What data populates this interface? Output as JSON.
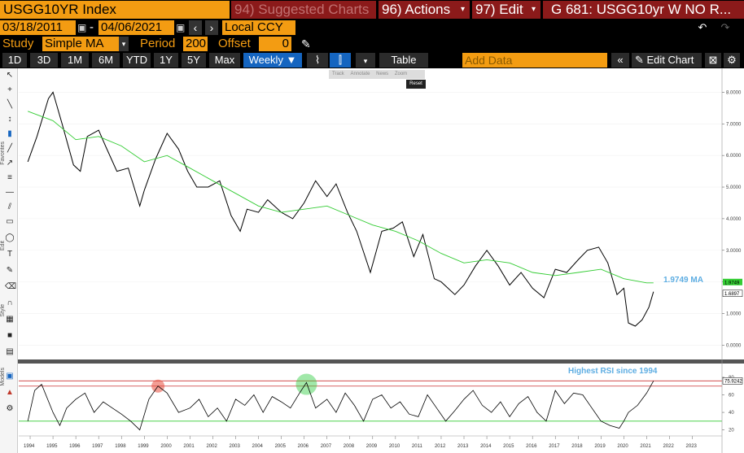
{
  "header": {
    "ticker": "USGG10YR Index",
    "suggested": "94) Suggested Charts",
    "actions": "96) Actions",
    "edit": "97) Edit",
    "chart_title": "G 681: USGG10yr W NO R...",
    "caret": "▾"
  },
  "range": {
    "start": "03/18/2011",
    "end": "04/06/2021",
    "dash": "-",
    "currency": "Local CCY",
    "prev": "‹",
    "next": "›"
  },
  "study": {
    "label": "Study",
    "value": "Simple MA",
    "period_label": "Period",
    "period_value": "200",
    "offset_label": "Offset",
    "offset_value": "0"
  },
  "toolbar": {
    "periods": [
      "1D",
      "3D",
      "1M",
      "6M",
      "YTD",
      "1Y",
      "5Y",
      "Max"
    ],
    "frequency": "Weekly ▼",
    "table": "Table",
    "add_data_placeholder": "Add Data",
    "edit_chart": "Edit Chart"
  },
  "chart_tools": {
    "items": [
      "Track",
      "Annotate",
      "News",
      "Zoom"
    ],
    "reset": "Reset"
  },
  "side_labels": [
    "Favorites",
    "Edit",
    "Style",
    "Models"
  ],
  "chart_data": {
    "type": "line",
    "upper": {
      "y_ticks": [
        "8.0000",
        "7.0000",
        "6.0000",
        "5.0000",
        "4.0000",
        "3.0000",
        "2.0000",
        "1.0000",
        "0.0000"
      ],
      "ylim": [
        -0.3,
        8.5
      ],
      "series": [
        {
          "name": "",
          "color": "#000000",
          "x": [
            1993.9,
            1994.3,
            1994.8,
            1995.0,
            1995.4,
            1995.9,
            1996.2,
            1996.5,
            1997.0,
            1997.3,
            1997.8,
            1998.3,
            1998.8,
            1999.0,
            1999.5,
            2000.0,
            2000.5,
            2000.9,
            2001.3,
            2001.8,
            2002.3,
            2002.8,
            2003.2,
            2003.5,
            2004.0,
            2004.4,
            2005.0,
            2005.5,
            2006.0,
            2006.5,
            2007.0,
            2007.4,
            2007.9,
            2008.3,
            2008.9,
            2009.4,
            2009.9,
            2010.3,
            2010.8,
            2011.2,
            2011.7,
            2012.0,
            2012.6,
            2013.0,
            2013.5,
            2014.0,
            2014.5,
            2015.0,
            2015.5,
            2016.0,
            2016.5,
            2017.0,
            2017.5,
            2018.0,
            2018.4,
            2018.9,
            2019.3,
            2019.7,
            2020.0,
            2020.2,
            2020.5,
            2020.8,
            2021.1,
            2021.3
          ],
          "y": [
            5.8,
            6.6,
            7.8,
            8.0,
            7.0,
            5.7,
            5.5,
            6.6,
            6.8,
            6.3,
            5.5,
            5.6,
            4.4,
            4.9,
            5.9,
            6.7,
            6.2,
            5.5,
            5.0,
            5.0,
            5.2,
            4.1,
            3.6,
            4.3,
            4.2,
            4.6,
            4.2,
            4.0,
            4.5,
            5.2,
            4.7,
            5.1,
            4.2,
            3.6,
            2.3,
            3.6,
            3.7,
            3.9,
            2.8,
            3.5,
            2.1,
            2.0,
            1.6,
            1.9,
            2.5,
            3.0,
            2.5,
            1.9,
            2.3,
            1.8,
            1.5,
            2.4,
            2.3,
            2.7,
            3.0,
            3.1,
            2.6,
            1.6,
            1.8,
            0.7,
            0.6,
            0.8,
            1.2,
            1.69
          ]
        },
        {
          "name": "MA",
          "color": "#33cc33",
          "x": [
            1993.9,
            1995.0,
            1996.0,
            1997.0,
            1998.0,
            1999.0,
            2000.0,
            2001.0,
            2002.0,
            2003.0,
            2004.0,
            2005.0,
            2006.0,
            2007.0,
            2008.0,
            2009.0,
            2010.0,
            2011.0,
            2012.0,
            2013.0,
            2014.0,
            2015.0,
            2016.0,
            2017.0,
            2018.0,
            2019.0,
            2020.0,
            2021.0,
            2021.3
          ],
          "y": [
            7.4,
            7.1,
            6.5,
            6.6,
            6.3,
            5.8,
            6.0,
            5.6,
            5.2,
            4.8,
            4.4,
            4.2,
            4.3,
            4.4,
            4.1,
            3.8,
            3.6,
            3.3,
            2.9,
            2.6,
            2.7,
            2.6,
            2.3,
            2.2,
            2.3,
            2.4,
            2.1,
            1.97,
            1.97
          ]
        }
      ],
      "last_value": "1.6897",
      "ma_value": "1.9749",
      "ma_annotation": "1.9749 MA"
    },
    "lower": {
      "y_ticks": [
        "80",
        "60",
        "40",
        "20"
      ],
      "ylim": [
        15,
        92
      ],
      "upper_band": 70,
      "lower_band": 30,
      "max_line": 75.9242,
      "last_value": "75.9242",
      "annotation": "Highest RSI since 1994",
      "rsi_x": [
        1993.9,
        1994.2,
        1994.5,
        1995.0,
        1995.3,
        1995.6,
        1996.0,
        1996.4,
        1996.8,
        1997.2,
        1997.6,
        1998.0,
        1998.4,
        1998.8,
        1999.2,
        1999.6,
        2000.0,
        2000.5,
        2001.0,
        2001.4,
        2001.8,
        2002.2,
        2002.6,
        2003.0,
        2003.4,
        2003.8,
        2004.2,
        2004.6,
        2005.0,
        2005.4,
        2005.8,
        2006.1,
        2006.5,
        2007.0,
        2007.4,
        2007.8,
        2008.2,
        2008.6,
        2009.0,
        2009.4,
        2009.8,
        2010.2,
        2010.6,
        2011.0,
        2011.4,
        2011.8,
        2012.2,
        2012.6,
        2013.0,
        2013.4,
        2013.8,
        2014.2,
        2014.6,
        2015.0,
        2015.4,
        2015.8,
        2016.2,
        2016.6,
        2017.0,
        2017.4,
        2017.8,
        2018.2,
        2018.6,
        2019.0,
        2019.4,
        2019.8,
        2020.0,
        2020.2,
        2020.6,
        2021.0,
        2021.3
      ],
      "rsi_y": [
        30,
        65,
        72,
        40,
        25,
        45,
        55,
        62,
        40,
        52,
        45,
        38,
        30,
        20,
        55,
        70,
        62,
        40,
        45,
        55,
        35,
        45,
        30,
        55,
        48,
        60,
        40,
        58,
        52,
        45,
        62,
        74,
        45,
        55,
        40,
        62,
        48,
        30,
        55,
        60,
        45,
        52,
        38,
        35,
        60,
        45,
        30,
        42,
        55,
        65,
        48,
        40,
        52,
        35,
        50,
        58,
        40,
        30,
        65,
        50,
        62,
        60,
        45,
        30,
        25,
        22,
        30,
        40,
        48,
        62,
        75.9
      ]
    }
  }
}
